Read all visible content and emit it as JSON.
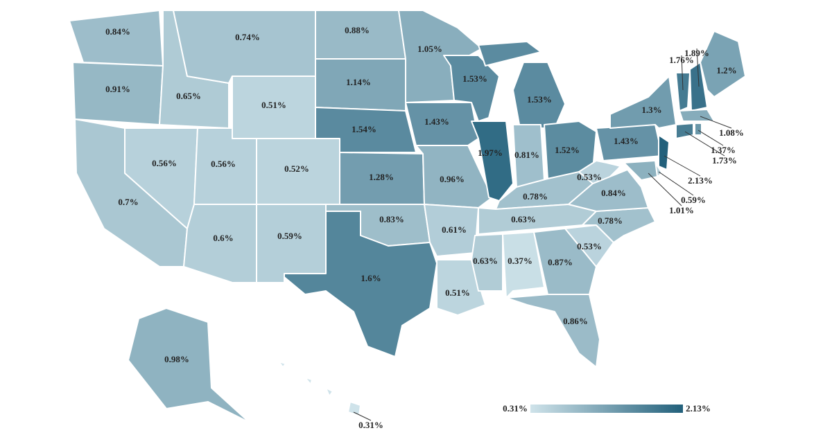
{
  "chart_data": {
    "type": "choropleth",
    "values": [
      0.84,
      0.91,
      0.7,
      0.56,
      0.65,
      0.74,
      0.51,
      0.56,
      0.52,
      0.6,
      0.59,
      0.88,
      1.14,
      1.54,
      1.28,
      0.83,
      1.6,
      1.05,
      1.43,
      0.96,
      0.61,
      0.51,
      1.53,
      1.97,
      1.53,
      0.81,
      1.52,
      0.78,
      0.63,
      0.63,
      0.37,
      0.87,
      0.86,
      0.53,
      0.78,
      0.84,
      0.53,
      1.43,
      1.3,
      2.13,
      0.59,
      1.01,
      1.76,
      1.89,
      1.2,
      1.08,
      1.73,
      1.37,
      0.98,
      0.31
    ],
    "value_labels": [
      "0.84%",
      "0.91%",
      "0.7%",
      "0.56%",
      "0.65%",
      "0.74%",
      "0.51%",
      "0.56%",
      "0.52%",
      "0.6%",
      "0.59%",
      "0.88%",
      "1.14%",
      "1.54%",
      "1.28%",
      "0.83%",
      "1.6%",
      "1.05%",
      "1.43%",
      "0.96%",
      "0.61%",
      "0.51%",
      "1.53%",
      "1.97%",
      "1.53%",
      "0.81%",
      "1.52%",
      "0.78%",
      "0.63%",
      "0.63%",
      "0.37%",
      "0.87%",
      "0.86%",
      "0.53%",
      "0.78%",
      "0.84%",
      "0.53%",
      "1.43%",
      "1.3%",
      "2.13%",
      "0.59%",
      "1.01%",
      "1.76%",
      "1.89%",
      "1.2%",
      "1.08%",
      "1.73%",
      "1.37%",
      "0.98%",
      "0.31%"
    ],
    "colorbar": {
      "lim": [
        0.31,
        2.13
      ],
      "colors": [
        "#cfe3ea",
        "#22607b"
      ],
      "ticks": [
        {
          "value": 0.31,
          "label": "0.31%"
        },
        {
          "value": 2.13,
          "label": "2.13%"
        }
      ]
    }
  }
}
